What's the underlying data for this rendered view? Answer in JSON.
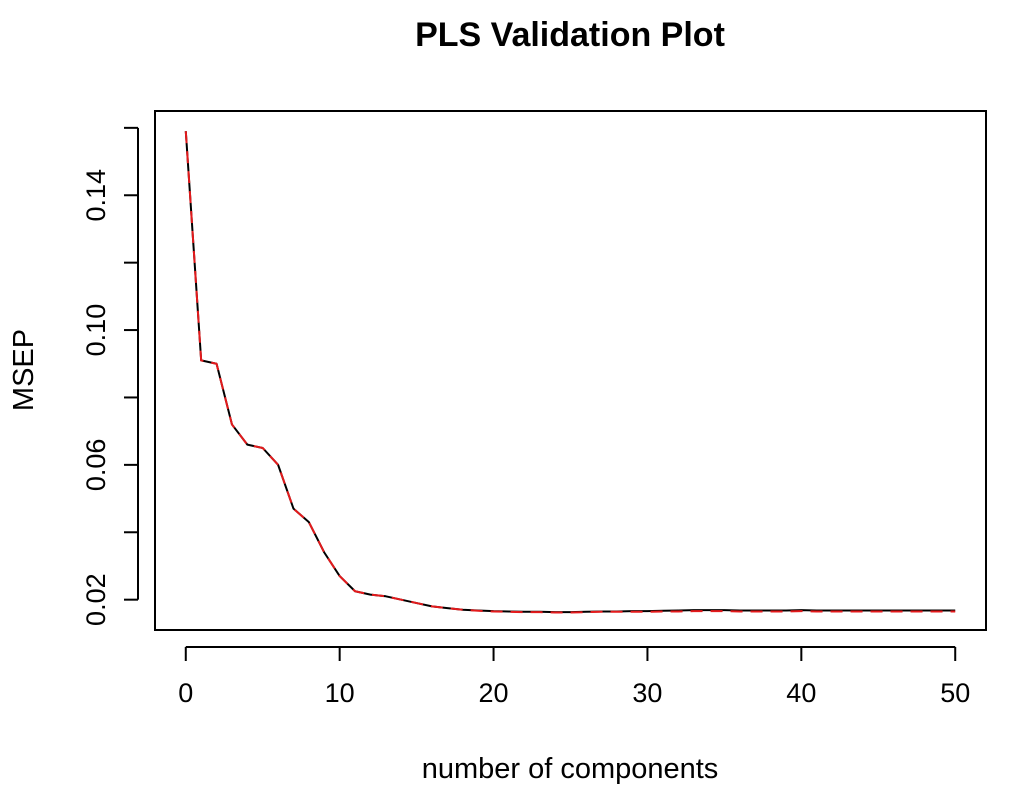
{
  "chart_data": {
    "type": "line",
    "title": "PLS Validation Plot",
    "xlabel": "number of components",
    "ylabel": "MSEP",
    "xlim": [
      -2,
      52
    ],
    "ylim": [
      0.011,
      0.165
    ],
    "x_ticks": [
      0,
      10,
      20,
      30,
      40,
      50
    ],
    "x_tick_labels": [
      "0",
      "10",
      "20",
      "30",
      "40",
      "50"
    ],
    "y_ticks": [
      0.02,
      0.04,
      0.06,
      0.08,
      0.1,
      0.12,
      0.14,
      0.16
    ],
    "y_tick_labels": [
      "0.02",
      "",
      "0.06",
      "",
      "0.10",
      "",
      "0.14",
      ""
    ],
    "grid": false,
    "legend": "none",
    "series": [
      {
        "color": "#000000",
        "dash": "solid",
        "x": [
          0,
          1,
          2,
          3,
          4,
          5,
          6,
          7,
          8,
          9,
          10,
          11,
          12,
          13,
          14,
          15,
          16,
          17,
          18,
          19,
          20,
          21,
          22,
          23,
          24,
          25,
          26,
          27,
          28,
          29,
          30,
          31,
          32,
          33,
          34,
          35,
          36,
          37,
          38,
          39,
          40,
          41,
          42,
          43,
          44,
          45,
          46,
          47,
          48,
          49,
          50
        ],
        "values": [
          0.159,
          0.091,
          0.09,
          0.072,
          0.066,
          0.065,
          0.06,
          0.047,
          0.043,
          0.034,
          0.027,
          0.0225,
          0.0215,
          0.021,
          0.02,
          0.019,
          0.018,
          0.0175,
          0.017,
          0.0168,
          0.0166,
          0.0165,
          0.0164,
          0.0164,
          0.0163,
          0.0163,
          0.0164,
          0.0165,
          0.0165,
          0.0166,
          0.0166,
          0.0167,
          0.0168,
          0.0169,
          0.0169,
          0.0169,
          0.0168,
          0.0168,
          0.0168,
          0.0168,
          0.0169,
          0.0168,
          0.0168,
          0.0168,
          0.0168,
          0.0168,
          0.0168,
          0.0168,
          0.0168,
          0.0168,
          0.0168
        ]
      },
      {
        "color": "#e41a1c",
        "dash": "dashed",
        "x": [
          0,
          1,
          2,
          3,
          4,
          5,
          6,
          7,
          8,
          9,
          10,
          11,
          12,
          13,
          14,
          15,
          16,
          17,
          18,
          19,
          20,
          21,
          22,
          23,
          24,
          25,
          26,
          27,
          28,
          29,
          30,
          31,
          32,
          33,
          34,
          35,
          36,
          37,
          38,
          39,
          40,
          41,
          42,
          43,
          44,
          45,
          46,
          47,
          48,
          49,
          50
        ],
        "values": [
          0.159,
          0.091,
          0.09,
          0.072,
          0.066,
          0.065,
          0.06,
          0.047,
          0.043,
          0.034,
          0.027,
          0.0225,
          0.0215,
          0.021,
          0.02,
          0.019,
          0.018,
          0.0175,
          0.017,
          0.0167,
          0.0165,
          0.0164,
          0.0163,
          0.0163,
          0.0162,
          0.0162,
          0.0163,
          0.0164,
          0.0164,
          0.0164,
          0.0164,
          0.0165,
          0.0165,
          0.0166,
          0.0166,
          0.0166,
          0.0165,
          0.0165,
          0.0165,
          0.0165,
          0.0166,
          0.0165,
          0.0165,
          0.0165,
          0.0165,
          0.0165,
          0.0165,
          0.0165,
          0.0165,
          0.0165,
          0.0165
        ]
      }
    ]
  }
}
